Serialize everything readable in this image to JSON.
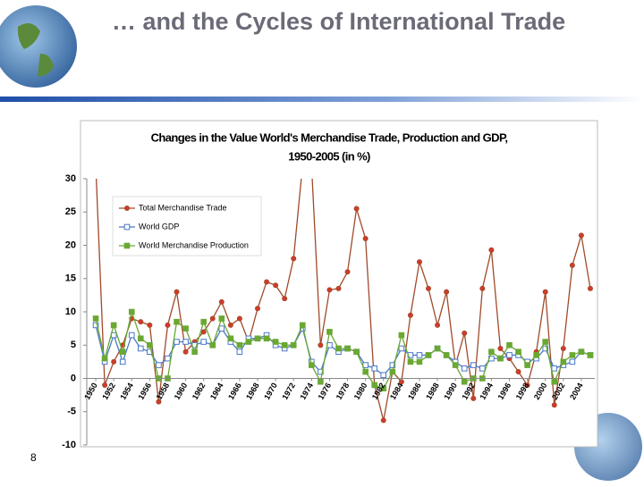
{
  "slide_title": "… and the Cycles of International Trade",
  "page_number": "8",
  "chart_data": {
    "type": "line",
    "title": "Changes in the Value World's Merchandise Trade, Production and GDP,",
    "subtitle": "1950-2005 (in %)",
    "x": [
      1950,
      1951,
      1952,
      1953,
      1954,
      1955,
      1956,
      1957,
      1958,
      1959,
      1960,
      1961,
      1962,
      1963,
      1964,
      1965,
      1966,
      1967,
      1968,
      1969,
      1970,
      1971,
      1972,
      1973,
      1974,
      1975,
      1976,
      1977,
      1978,
      1979,
      1980,
      1981,
      1982,
      1983,
      1984,
      1985,
      1986,
      1987,
      1988,
      1989,
      1990,
      1991,
      1992,
      1993,
      1994,
      1995,
      1996,
      1997,
      1998,
      1999,
      2000,
      2001,
      2002,
      2003,
      2004,
      2005
    ],
    "xlim": [
      1949,
      2005.5
    ],
    "xticks": [
      1950,
      1952,
      1954,
      1956,
      1958,
      1960,
      1962,
      1964,
      1966,
      1968,
      1970,
      1972,
      1974,
      1976,
      1978,
      1980,
      1982,
      1984,
      1986,
      1988,
      1990,
      1992,
      1994,
      1996,
      1998,
      2000,
      2002,
      2004
    ],
    "ylim": [
      -10,
      30
    ],
    "yticks": [
      30,
      25,
      20,
      15,
      10,
      5,
      0,
      -5,
      -10
    ],
    "legend": "upper-left",
    "series": [
      {
        "name": "Total Merchandise Trade",
        "color": "#a04a2a",
        "marker": "circle",
        "values": [
          32,
          -1,
          2.5,
          5,
          9,
          8.5,
          8,
          -3.5,
          8,
          13,
          4,
          5.5,
          7,
          9,
          11.5,
          8,
          9,
          5.5,
          10.5,
          14.5,
          14,
          12,
          18,
          32,
          32,
          5,
          13.3,
          13.5,
          16,
          25.5,
          21,
          -1,
          -6.3,
          1,
          -0.5,
          9.5,
          17.5,
          13.5,
          8,
          13,
          2,
          6.8,
          -3,
          13.5,
          19.3,
          4.5,
          3,
          1,
          -1,
          4,
          13,
          -4,
          4.5,
          17,
          21.5,
          13.5
        ]
      },
      {
        "name": "World GDP",
        "color": "#4a78c8",
        "marker": "square-open",
        "values": [
          8,
          2.5,
          6.5,
          2.5,
          6.5,
          4.5,
          4,
          2,
          3,
          5.5,
          5.5,
          5,
          5.5,
          5,
          7.5,
          5.5,
          4,
          6,
          6,
          6.5,
          5,
          4.5,
          5,
          7.5,
          2.5,
          1,
          5,
          4,
          4.5,
          4,
          2,
          1.5,
          0.5,
          2,
          4.5,
          3.5,
          3.5,
          3.5,
          4.5,
          3.5,
          2.5,
          1.5,
          2,
          1.5,
          3,
          3,
          3.5,
          3.5,
          2.5,
          3,
          4.5,
          1.5,
          2,
          2.5,
          4,
          3.5
        ]
      },
      {
        "name": "World Merchandise Production",
        "color": "#6aa832",
        "marker": "square",
        "values": [
          9,
          3,
          8,
          4,
          10,
          6,
          5,
          0,
          0,
          8.5,
          7.5,
          4,
          8.5,
          5,
          9,
          6,
          5,
          5.5,
          6,
          6,
          5.5,
          5,
          5,
          8,
          2,
          -0.5,
          7,
          4.5,
          4.5,
          4,
          1,
          -1,
          -1.5,
          1,
          6.5,
          2.5,
          2.5,
          3.5,
          4.5,
          3.5,
          2,
          -0.5,
          0,
          0,
          4,
          3,
          5,
          4,
          2,
          3.5,
          5.5,
          -0.5,
          2.5,
          3.5,
          4,
          3.5
        ]
      }
    ]
  }
}
